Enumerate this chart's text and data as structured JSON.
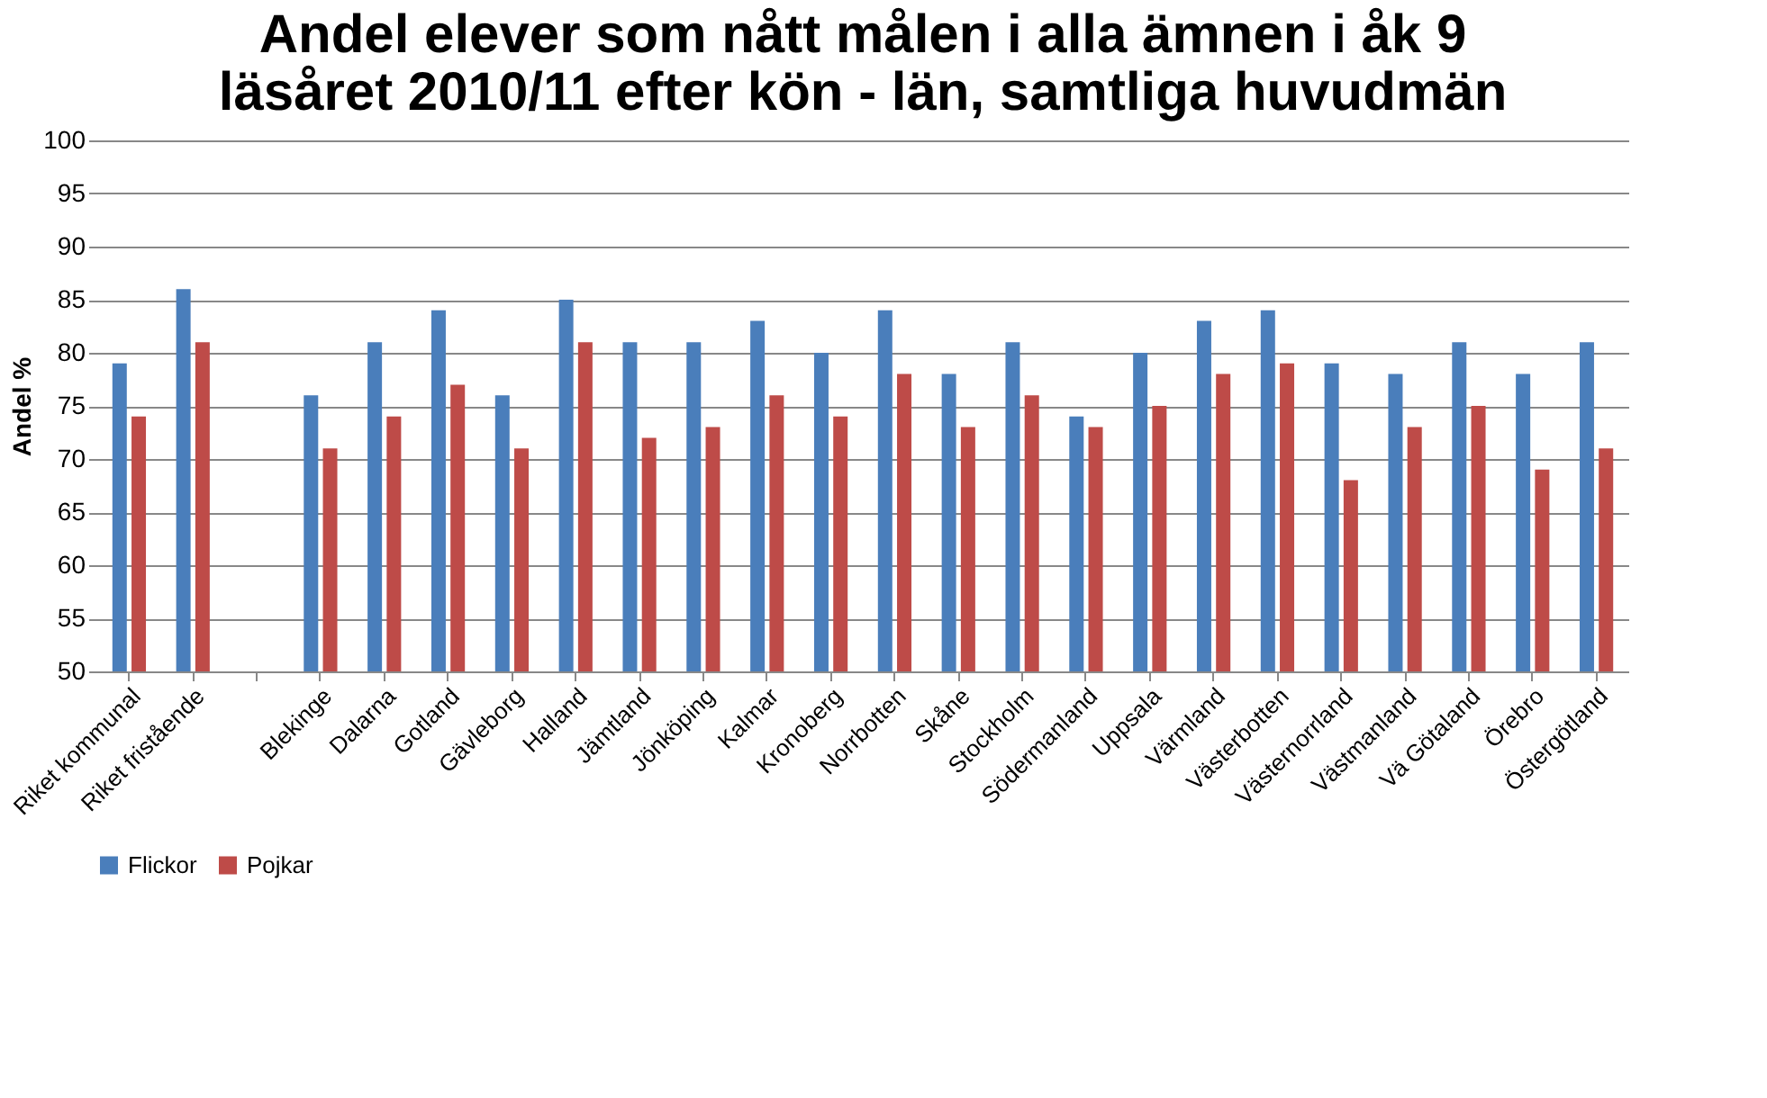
{
  "chart_data": {
    "type": "bar",
    "title": [
      "Andel elever som nått målen i alla ämnen i åk 9",
      "läsåret 2010/11 efter kön - län, samtliga huvudmän"
    ],
    "ylabel": "Andel %",
    "categories": [
      "Riket kommunal",
      "Riket fristående",
      null,
      "Blekinge",
      "Dalarna",
      "Gotland",
      "Gävleborg",
      "Halland",
      "Jämtland",
      "Jönköping",
      "Kalmar",
      "Kronoberg",
      "Norrbotten",
      "Skåne",
      "Stockholm",
      "Södermanland",
      "Uppsala",
      "Värmland",
      "Västerbotten",
      "Västernorrland",
      "Västmanland",
      "Vä Götaland",
      "Örebro",
      "Östergötland"
    ],
    "series": [
      {
        "name": "Flickor",
        "color": "#4a7ebb",
        "values": [
          79,
          86,
          null,
          76,
          81,
          84,
          76,
          85,
          81,
          81,
          83,
          80,
          84,
          78,
          81,
          74,
          80,
          83,
          84,
          79,
          78,
          81,
          78,
          81
        ]
      },
      {
        "name": "Pojkar",
        "color": "#be4b48",
        "values": [
          74,
          81,
          null,
          71,
          74,
          77,
          71,
          81,
          72,
          73,
          76,
          74,
          78,
          73,
          76,
          73,
          75,
          78,
          79,
          68,
          73,
          75,
          69,
          71
        ]
      }
    ],
    "ylim": [
      50,
      100
    ],
    "yticks": [
      50,
      55,
      60,
      65,
      70,
      75,
      80,
      85,
      90,
      95,
      100
    ],
    "grid": "y",
    "legend": "bottom"
  }
}
